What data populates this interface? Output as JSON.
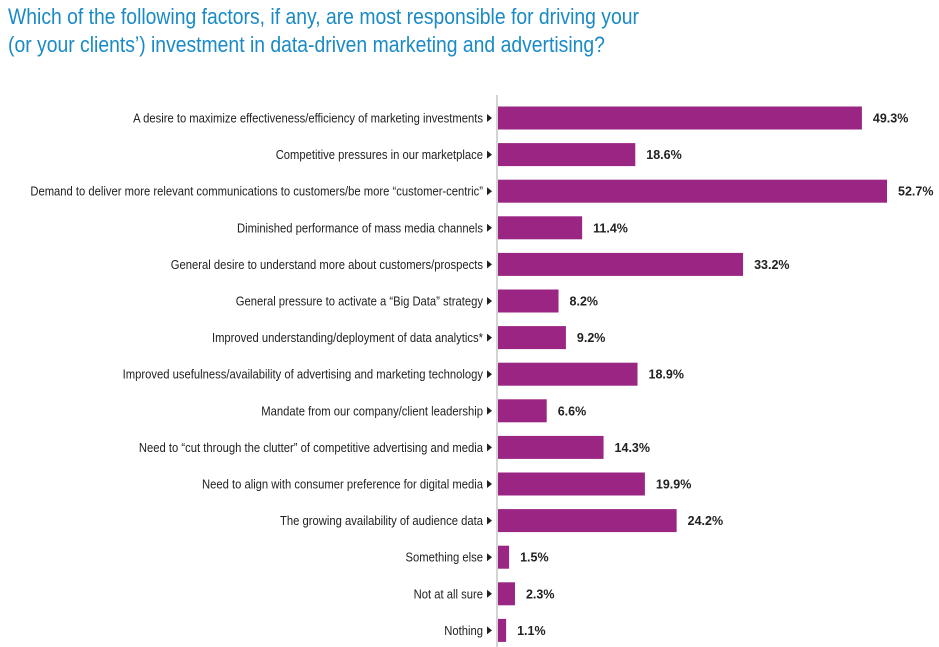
{
  "chart_data": {
    "type": "bar",
    "orientation": "horizontal",
    "title_lines": [
      "Which of the following factors, if any, are most responsible for driving your",
      "(or your clients’) investment in data-driven marketing and advertising?"
    ],
    "categories": [
      "A desire to maximize effectiveness/efficiency of marketing investments",
      "Competitive pressures in our marketplace",
      "Demand to deliver more relevant communications to customers/be more “customer-centric”",
      "Diminished performance of mass media channels",
      "General desire to understand more about customers/prospects",
      "General pressure to activate a “Big Data” strategy",
      "Improved understanding/deployment of data analytics*",
      "Improved usefulness/availability of advertising and marketing technology",
      "Mandate from our company/client leadership",
      "Need to “cut through the clutter” of competitive advertising and media",
      "Need to align with consumer preference for digital media",
      "The growing availability of audience data",
      "Something else",
      "Not at all sure",
      "Nothing"
    ],
    "values": [
      49.3,
      18.6,
      52.7,
      11.4,
      33.2,
      8.2,
      9.2,
      18.9,
      6.6,
      14.3,
      19.9,
      24.2,
      1.5,
      2.3,
      1.1
    ],
    "value_labels": [
      "49.3%",
      "18.6%",
      "52.7%",
      "11.4%",
      "33.2%",
      "8.2%",
      "9.2%",
      "18.9%",
      "6.6%",
      "14.3%",
      "19.9%",
      "24.2%",
      "1.5%",
      "2.3%",
      "1.1%"
    ],
    "unit": "%",
    "xlim": [
      0,
      55
    ],
    "grid": false,
    "bar_color": "#9b2583",
    "title_color": "#1a8ac6"
  }
}
